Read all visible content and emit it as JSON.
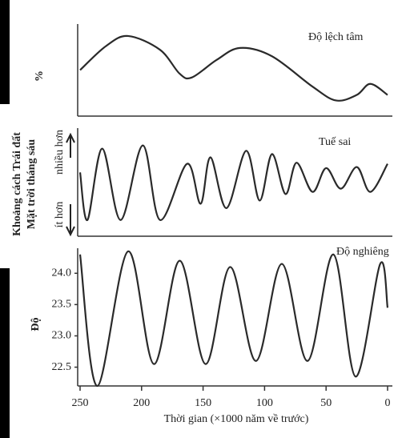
{
  "chart_data": [
    {
      "type": "line",
      "label": "Độ lệch tâm",
      "y_label": "%",
      "color": "#2a2a2a",
      "xlim": [
        250,
        0
      ],
      "ylim": [
        0,
        100
      ],
      "x": [
        250,
        229,
        211,
        185,
        169,
        159,
        139,
        120,
        94,
        61,
        42,
        25,
        14,
        0
      ],
      "values": [
        50,
        76,
        87,
        72,
        46,
        42,
        61,
        74,
        65,
        32,
        17,
        23,
        35,
        23
      ]
    },
    {
      "type": "line",
      "label": "Tuế sai",
      "y_label": [
        "Khoảng cách Trái đất",
        "Mặt trời tháng sáu"
      ],
      "annotations": [
        "nhiều hơn",
        "ít hơn"
      ],
      "color": "#2a2a2a",
      "xlim": [
        250,
        0
      ],
      "ylim": [
        0,
        100
      ],
      "x": [
        250,
        244,
        232,
        217,
        199,
        185,
        163,
        152,
        144,
        131,
        115,
        104,
        94,
        83,
        74,
        61,
        50,
        38,
        25,
        14,
        0
      ],
      "values": [
        59,
        15,
        81,
        15,
        84,
        15,
        67,
        30,
        73,
        26,
        79,
        33,
        76,
        39,
        68,
        41,
        63,
        44,
        64,
        41,
        67
      ]
    },
    {
      "type": "line",
      "label": "Độ nghiêng",
      "y_label": "Độ",
      "x_label": "Thời gian (×1000 năm về trước)",
      "color": "#2a2a2a",
      "xlim": [
        250,
        0
      ],
      "ylim": [
        22.2,
        24.4
      ],
      "xticks": [
        250,
        200,
        150,
        100,
        50,
        0
      ],
      "yticks": [
        {
          "value": 24.0,
          "label": "24.0"
        },
        23.5,
        {
          "value": 23.0,
          "label": "23.0"
        },
        22.5
      ],
      "x": [
        250,
        236,
        211,
        190,
        169,
        148,
        128,
        107,
        86,
        65,
        44,
        26,
        6,
        0
      ],
      "values": [
        24.3,
        22.2,
        24.35,
        22.55,
        24.2,
        22.55,
        24.1,
        22.6,
        24.15,
        22.6,
        24.3,
        22.35,
        24.15,
        23.45
      ]
    }
  ]
}
